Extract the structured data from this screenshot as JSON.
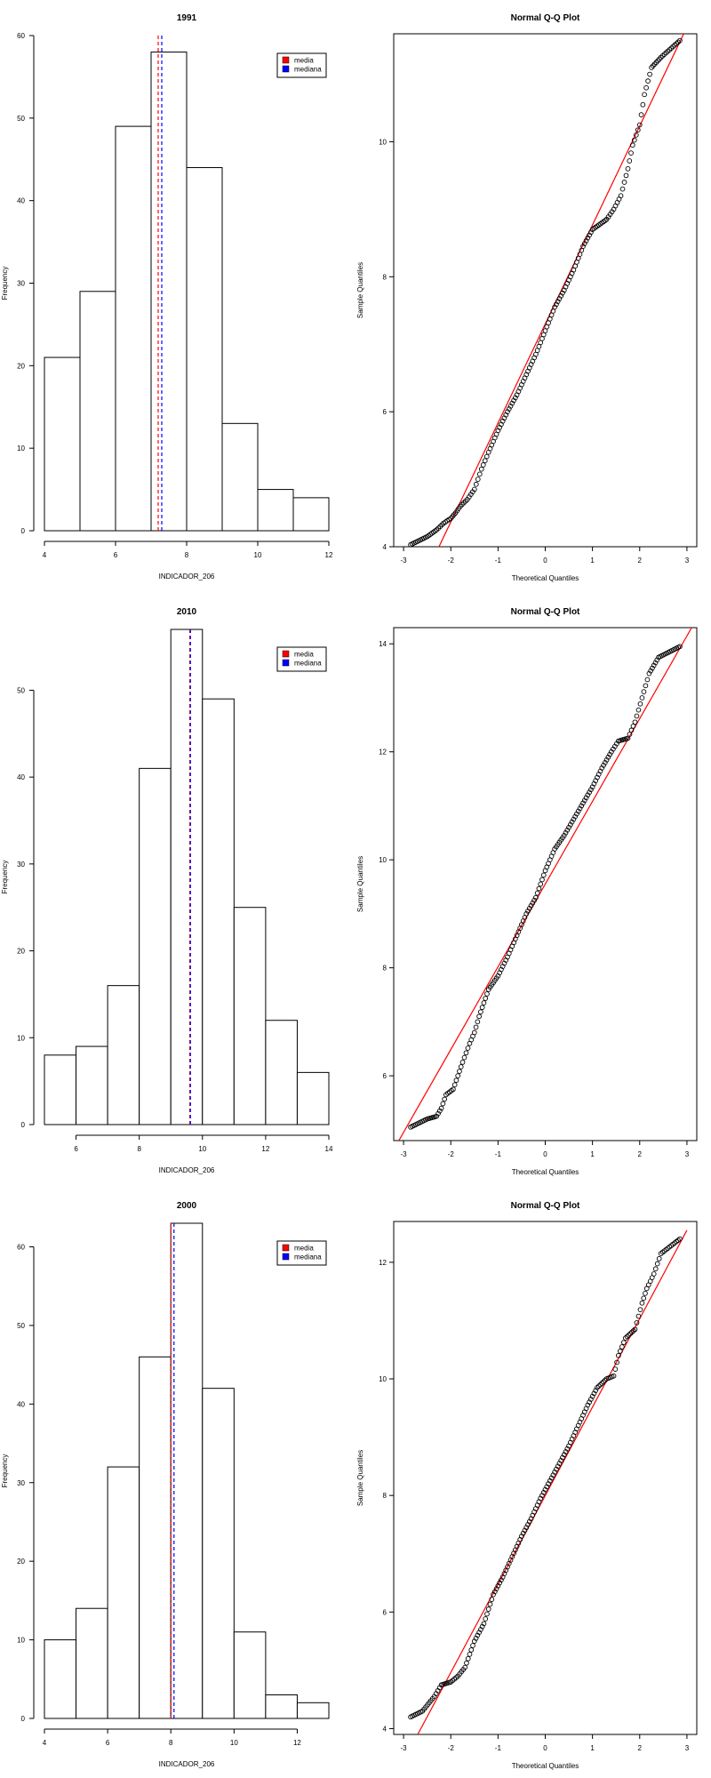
{
  "chart_data": [
    {
      "type": "bar",
      "role": "histogram",
      "title": "1991",
      "xlabel": "INDICADOR_206",
      "ylabel": "Frequency",
      "bins": [
        [
          4,
          5
        ],
        [
          5,
          6
        ],
        [
          6,
          7
        ],
        [
          7,
          8
        ],
        [
          8,
          9
        ],
        [
          9,
          10
        ],
        [
          10,
          11
        ],
        [
          11,
          12
        ]
      ],
      "values": [
        21,
        29,
        49,
        58,
        44,
        13,
        5,
        4
      ],
      "xlim": [
        4,
        12
      ],
      "ylim": [
        0,
        60
      ],
      "xticks": [
        4,
        6,
        8,
        10,
        12
      ],
      "yticks": [
        0,
        10,
        20,
        30,
        40,
        50,
        60
      ],
      "vlines": [
        {
          "name": "media",
          "value": 7.2,
          "color": "#ff0000"
        },
        {
          "name": "mediana",
          "value": 7.3,
          "color": "#0000ff"
        }
      ],
      "legend": {
        "position": "top-right",
        "items": [
          {
            "label": "media",
            "color": "#ff0000"
          },
          {
            "label": "mediana",
            "color": "#0000ff"
          }
        ]
      }
    },
    {
      "type": "scatter",
      "role": "qqplot",
      "title": "Normal Q-Q Plot",
      "xlabel": "Theoretical Quantiles",
      "ylabel": "Sample Quantiles",
      "xlim": [
        -3,
        3
      ],
      "ylim": [
        4,
        11.6
      ],
      "xticks": [
        -3,
        -2,
        -1,
        0,
        1,
        2,
        3
      ],
      "yticks": [
        4,
        6,
        8,
        10
      ],
      "line_color": "#ff0000",
      "line": {
        "x": [
          -2.25,
          3
        ],
        "y": [
          4,
          11.7
        ]
      },
      "anchors": [
        [
          -2.85,
          4.03
        ],
        [
          -2.5,
          4.15
        ],
        [
          -2.3,
          4.25
        ],
        [
          -2.15,
          4.35
        ],
        [
          -2.0,
          4.42
        ],
        [
          -1.9,
          4.5
        ],
        [
          -1.8,
          4.6
        ],
        [
          -1.65,
          4.7
        ],
        [
          -1.5,
          4.85
        ],
        [
          -1.35,
          5.15
        ],
        [
          -1.2,
          5.4
        ],
        [
          -1.0,
          5.72
        ],
        [
          -0.8,
          6.0
        ],
        [
          -0.6,
          6.25
        ],
        [
          -0.4,
          6.55
        ],
        [
          -0.2,
          6.85
        ],
        [
          0.0,
          7.2
        ],
        [
          0.2,
          7.55
        ],
        [
          0.4,
          7.8
        ],
        [
          0.6,
          8.1
        ],
        [
          0.8,
          8.45
        ],
        [
          1.0,
          8.7
        ],
        [
          1.2,
          8.8
        ],
        [
          1.3,
          8.85
        ],
        [
          1.45,
          9.0
        ],
        [
          1.6,
          9.2
        ],
        [
          1.75,
          9.6
        ],
        [
          1.85,
          9.95
        ],
        [
          2.0,
          10.25
        ],
        [
          2.1,
          10.7
        ],
        [
          2.25,
          11.1
        ],
        [
          2.45,
          11.25
        ],
        [
          2.85,
          11.5
        ]
      ]
    },
    {
      "type": "bar",
      "role": "histogram",
      "title": "2010",
      "xlabel": "INDICADOR_206",
      "ylabel": "Frequency",
      "bins": [
        [
          5,
          6
        ],
        [
          6,
          7
        ],
        [
          7,
          8
        ],
        [
          8,
          9
        ],
        [
          9,
          10
        ],
        [
          10,
          11
        ],
        [
          11,
          12
        ],
        [
          12,
          13
        ],
        [
          13,
          14
        ]
      ],
      "values": [
        8,
        9,
        16,
        41,
        57,
        49,
        25,
        12,
        6
      ],
      "xlim": [
        5,
        14
      ],
      "ylim": [
        0,
        57
      ],
      "xticks": [
        6,
        8,
        10,
        12,
        14
      ],
      "yticks": [
        0,
        10,
        20,
        30,
        40,
        50
      ],
      "vlines": [
        {
          "name": "media",
          "value": 9.6,
          "color": "#ff0000"
        },
        {
          "name": "mediana",
          "value": 9.62,
          "color": "#0000ff"
        }
      ],
      "legend": {
        "position": "top-right",
        "items": [
          {
            "label": "media",
            "color": "#ff0000"
          },
          {
            "label": "mediana",
            "color": "#0000ff"
          }
        ]
      }
    },
    {
      "type": "scatter",
      "role": "qqplot",
      "title": "Normal Q-Q Plot",
      "xlabel": "Theoretical Quantiles",
      "ylabel": "Sample Quantiles",
      "xlim": [
        -3,
        3
      ],
      "ylim": [
        4.8,
        14.3
      ],
      "xticks": [
        -3,
        -2,
        -1,
        0,
        1,
        2,
        3
      ],
      "yticks": [
        6,
        8,
        10,
        12,
        14
      ],
      "line_color": "#ff0000",
      "line": {
        "x": [
          -3.1,
          3.1
        ],
        "y": [
          4.8,
          14.3
        ]
      },
      "anchors": [
        [
          -2.85,
          5.05
        ],
        [
          -2.5,
          5.2
        ],
        [
          -2.3,
          5.25
        ],
        [
          -2.2,
          5.4
        ],
        [
          -2.1,
          5.65
        ],
        [
          -1.95,
          5.75
        ],
        [
          -1.85,
          6.0
        ],
        [
          -1.75,
          6.25
        ],
        [
          -1.6,
          6.6
        ],
        [
          -1.5,
          6.8
        ],
        [
          -1.4,
          7.1
        ],
        [
          -1.3,
          7.35
        ],
        [
          -1.2,
          7.6
        ],
        [
          -1.0,
          7.85
        ],
        [
          -0.8,
          8.2
        ],
        [
          -0.6,
          8.6
        ],
        [
          -0.4,
          9.0
        ],
        [
          -0.2,
          9.3
        ],
        [
          0.0,
          9.8
        ],
        [
          0.2,
          10.2
        ],
        [
          0.4,
          10.45
        ],
        [
          0.6,
          10.75
        ],
        [
          0.8,
          11.05
        ],
        [
          1.0,
          11.35
        ],
        [
          1.2,
          11.7
        ],
        [
          1.4,
          12.0
        ],
        [
          1.55,
          12.2
        ],
        [
          1.75,
          12.25
        ],
        [
          1.9,
          12.55
        ],
        [
          2.05,
          13.0
        ],
        [
          2.2,
          13.45
        ],
        [
          2.4,
          13.75
        ],
        [
          2.85,
          13.95
        ]
      ]
    },
    {
      "type": "bar",
      "role": "histogram",
      "title": "2000",
      "xlabel": "INDICADOR_206",
      "ylabel": "Frequency",
      "bins": [
        [
          4,
          5
        ],
        [
          5,
          6
        ],
        [
          6,
          7
        ],
        [
          7,
          8
        ],
        [
          8,
          9
        ],
        [
          9,
          10
        ],
        [
          10,
          11
        ],
        [
          11,
          12
        ],
        [
          12,
          13
        ]
      ],
      "values": [
        10,
        14,
        32,
        46,
        63,
        42,
        11,
        3,
        2
      ],
      "xlim": [
        4,
        13
      ],
      "ylim": [
        0,
        63
      ],
      "xticks": [
        4,
        6,
        8,
        10,
        12
      ],
      "yticks": [
        0,
        10,
        20,
        30,
        40,
        50,
        60
      ],
      "vlines": [
        {
          "name": "media",
          "value": 8.0,
          "color": "#ff0000"
        },
        {
          "name": "mediana",
          "value": 8.1,
          "color": "#0000ff"
        }
      ],
      "legend": {
        "position": "top-right",
        "items": [
          {
            "label": "media",
            "color": "#ff0000"
          },
          {
            "label": "mediana",
            "color": "#0000ff"
          }
        ]
      }
    },
    {
      "type": "scatter",
      "role": "qqplot",
      "title": "Normal Q-Q Plot",
      "xlabel": "Theoretical Quantiles",
      "ylabel": "Sample Quantiles",
      "xlim": [
        -3,
        3
      ],
      "ylim": [
        3.9,
        12.7
      ],
      "xticks": [
        -3,
        -2,
        -1,
        0,
        1,
        2,
        3
      ],
      "yticks": [
        4,
        6,
        8,
        10,
        12
      ],
      "line_color": "#ff0000",
      "line": {
        "x": [
          -2.7,
          3.0
        ],
        "y": [
          3.9,
          12.55
        ]
      },
      "anchors": [
        [
          -2.85,
          4.2
        ],
        [
          -2.6,
          4.3
        ],
        [
          -2.35,
          4.55
        ],
        [
          -2.2,
          4.75
        ],
        [
          -2.0,
          4.8
        ],
        [
          -1.85,
          4.9
        ],
        [
          -1.7,
          5.05
        ],
        [
          -1.5,
          5.5
        ],
        [
          -1.3,
          5.8
        ],
        [
          -1.1,
          6.3
        ],
        [
          -0.9,
          6.6
        ],
        [
          -0.7,
          6.95
        ],
        [
          -0.5,
          7.3
        ],
        [
          -0.3,
          7.6
        ],
        [
          -0.1,
          7.95
        ],
        [
          0.1,
          8.25
        ],
        [
          0.3,
          8.55
        ],
        [
          0.5,
          8.85
        ],
        [
          0.7,
          9.2
        ],
        [
          0.9,
          9.55
        ],
        [
          1.1,
          9.85
        ],
        [
          1.3,
          10.0
        ],
        [
          1.45,
          10.05
        ],
        [
          1.55,
          10.4
        ],
        [
          1.7,
          10.7
        ],
        [
          1.9,
          10.85
        ],
        [
          2.05,
          11.3
        ],
        [
          2.15,
          11.55
        ],
        [
          2.3,
          11.8
        ],
        [
          2.45,
          12.15
        ],
        [
          2.85,
          12.4
        ]
      ]
    }
  ]
}
